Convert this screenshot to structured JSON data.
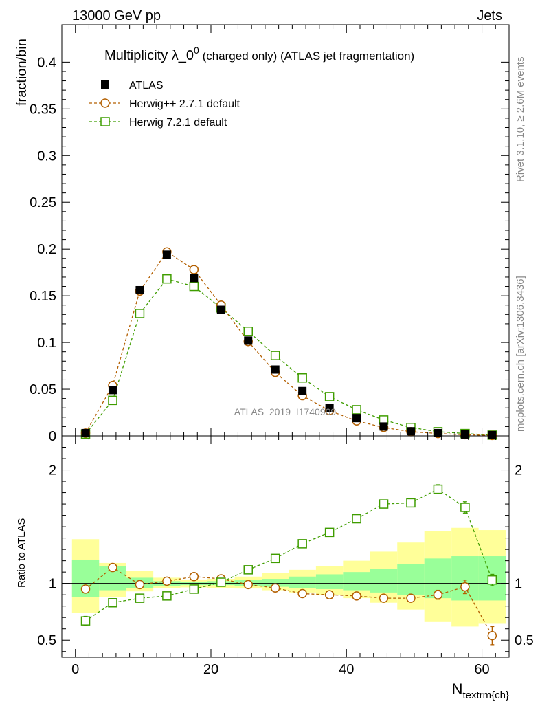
{
  "header": {
    "left": "13000 GeV pp",
    "right": "Jets"
  },
  "side_labels": {
    "rivet": "Rivet 3.1.10, ≥ 2.6M events",
    "mcplots": "mcplots.cern.ch [arXiv:1306.3436]"
  },
  "watermark": "ATLAS_2019_I1740909",
  "chart_data": [
    {
      "type": "scatter",
      "title_main": "Multiplicity λ_0",
      "title_sup": "0",
      "title_rest": " (charged only) (ATLAS jet fragmentation)",
      "ylabel": "fraction/bin",
      "xlabel_main": "N",
      "xlabel_sub": "textrm{ch}",
      "xlim": [
        -2,
        64
      ],
      "ylim": [
        0,
        0.44
      ],
      "x": [
        1.5,
        5.5,
        9.5,
        13.5,
        17.5,
        21.5,
        25.5,
        29.5,
        33.5,
        37.5,
        41.5,
        45.5,
        49.5,
        53.5,
        57.5,
        61.5
      ],
      "y_ticks": [
        0,
        0.05,
        0.1,
        0.15,
        0.2,
        0.25,
        0.3,
        0.35,
        0.4
      ],
      "y_tick_labels": [
        "0",
        "0.05",
        "0.1",
        "0.15",
        "0.2",
        "0.25",
        "0.3",
        "0.35",
        "0.4"
      ],
      "legend_position": "top-left",
      "series": [
        {
          "name": "ATLAS",
          "color": "#000000",
          "marker": "filled-square",
          "values": [
            0.003,
            0.049,
            0.156,
            0.194,
            0.169,
            0.135,
            0.102,
            0.071,
            0.048,
            0.03,
            0.019,
            0.01,
            0.005,
            0.003,
            0.0015,
            0.0008
          ]
        },
        {
          "name": "Herwig++ 2.7.1 default",
          "color": "#b35f00",
          "marker": "open-circle",
          "values": [
            0.003,
            0.054,
            0.155,
            0.197,
            0.178,
            0.14,
            0.101,
            0.068,
            0.043,
            0.027,
            0.016,
            0.009,
            0.0045,
            0.0025,
            0.0012,
            0.0005
          ]
        },
        {
          "name": "Herwig 7.2.1 default",
          "color": "#3f9d00",
          "marker": "open-square",
          "values": [
            0.002,
            0.038,
            0.131,
            0.168,
            0.16,
            0.137,
            0.112,
            0.086,
            0.062,
            0.042,
            0.028,
            0.017,
            0.009,
            0.0045,
            0.0025,
            0.0008
          ]
        }
      ]
    },
    {
      "type": "scatter",
      "ylabel": "Ratio to ATLAS",
      "xlim": [
        -2,
        64
      ],
      "ylim": [
        0.35,
        2.3
      ],
      "x_ticks": [
        0,
        20,
        40,
        60
      ],
      "x_tick_labels": [
        "0",
        "20",
        "40",
        "60"
      ],
      "y_ticks": [
        0.5,
        1,
        2
      ],
      "y_tick_labels": [
        "0.5",
        "1",
        "2"
      ],
      "bands": {
        "x_edges": [
          -0.5,
          3.5,
          7.5,
          11.5,
          15.5,
          19.5,
          23.5,
          27.5,
          31.5,
          35.5,
          39.5,
          43.5,
          47.5,
          51.5,
          55.5,
          59.5,
          63.5
        ],
        "stat_lo": [
          0.88,
          0.94,
          0.96,
          0.98,
          0.985,
          0.985,
          0.98,
          0.97,
          0.96,
          0.95,
          0.94,
          0.92,
          0.9,
          0.87,
          0.85,
          0.85
        ],
        "stat_hi": [
          1.21,
          1.15,
          1.05,
          1.02,
          1.015,
          1.02,
          1.03,
          1.04,
          1.06,
          1.08,
          1.1,
          1.13,
          1.17,
          1.22,
          1.24,
          1.24
        ],
        "total_lo": [
          0.74,
          0.88,
          0.93,
          0.96,
          0.965,
          0.96,
          0.955,
          0.94,
          0.92,
          0.9,
          0.87,
          0.83,
          0.77,
          0.66,
          0.62,
          0.65
        ],
        "total_hi": [
          1.39,
          1.18,
          1.11,
          1.05,
          1.035,
          1.04,
          1.06,
          1.09,
          1.12,
          1.15,
          1.2,
          1.28,
          1.36,
          1.46,
          1.49,
          1.47
        ],
        "stat_color": "#99ff99",
        "total_color": "#ffff99"
      },
      "series": [
        {
          "name": "Herwig++ 2.7.1 default",
          "color": "#b35f00",
          "marker": "open-circle",
          "values": [
            0.95,
            1.14,
            0.99,
            1.02,
            1.06,
            1.04,
            0.99,
            0.96,
            0.91,
            0.9,
            0.89,
            0.87,
            0.87,
            0.9,
            0.97,
            0.54
          ],
          "errors": [
            0.03,
            0.01,
            0.01,
            0.01,
            0.01,
            0.01,
            0.01,
            0.01,
            0.01,
            0.01,
            0.01,
            0.02,
            0.03,
            0.04,
            0.06,
            0.08
          ]
        },
        {
          "name": "Herwig 7.2.1 default",
          "color": "#3f9d00",
          "marker": "open-square",
          "values": [
            0.67,
            0.83,
            0.87,
            0.89,
            0.95,
            1.01,
            1.12,
            1.22,
            1.35,
            1.45,
            1.57,
            1.7,
            1.71,
            1.83,
            1.67,
            1.03
          ],
          "errors": [
            0.04,
            0.01,
            0.01,
            0.01,
            0.01,
            0.01,
            0.01,
            0.01,
            0.01,
            0.01,
            0.01,
            0.02,
            0.03,
            0.04,
            0.05,
            0.05
          ]
        }
      ]
    }
  ]
}
